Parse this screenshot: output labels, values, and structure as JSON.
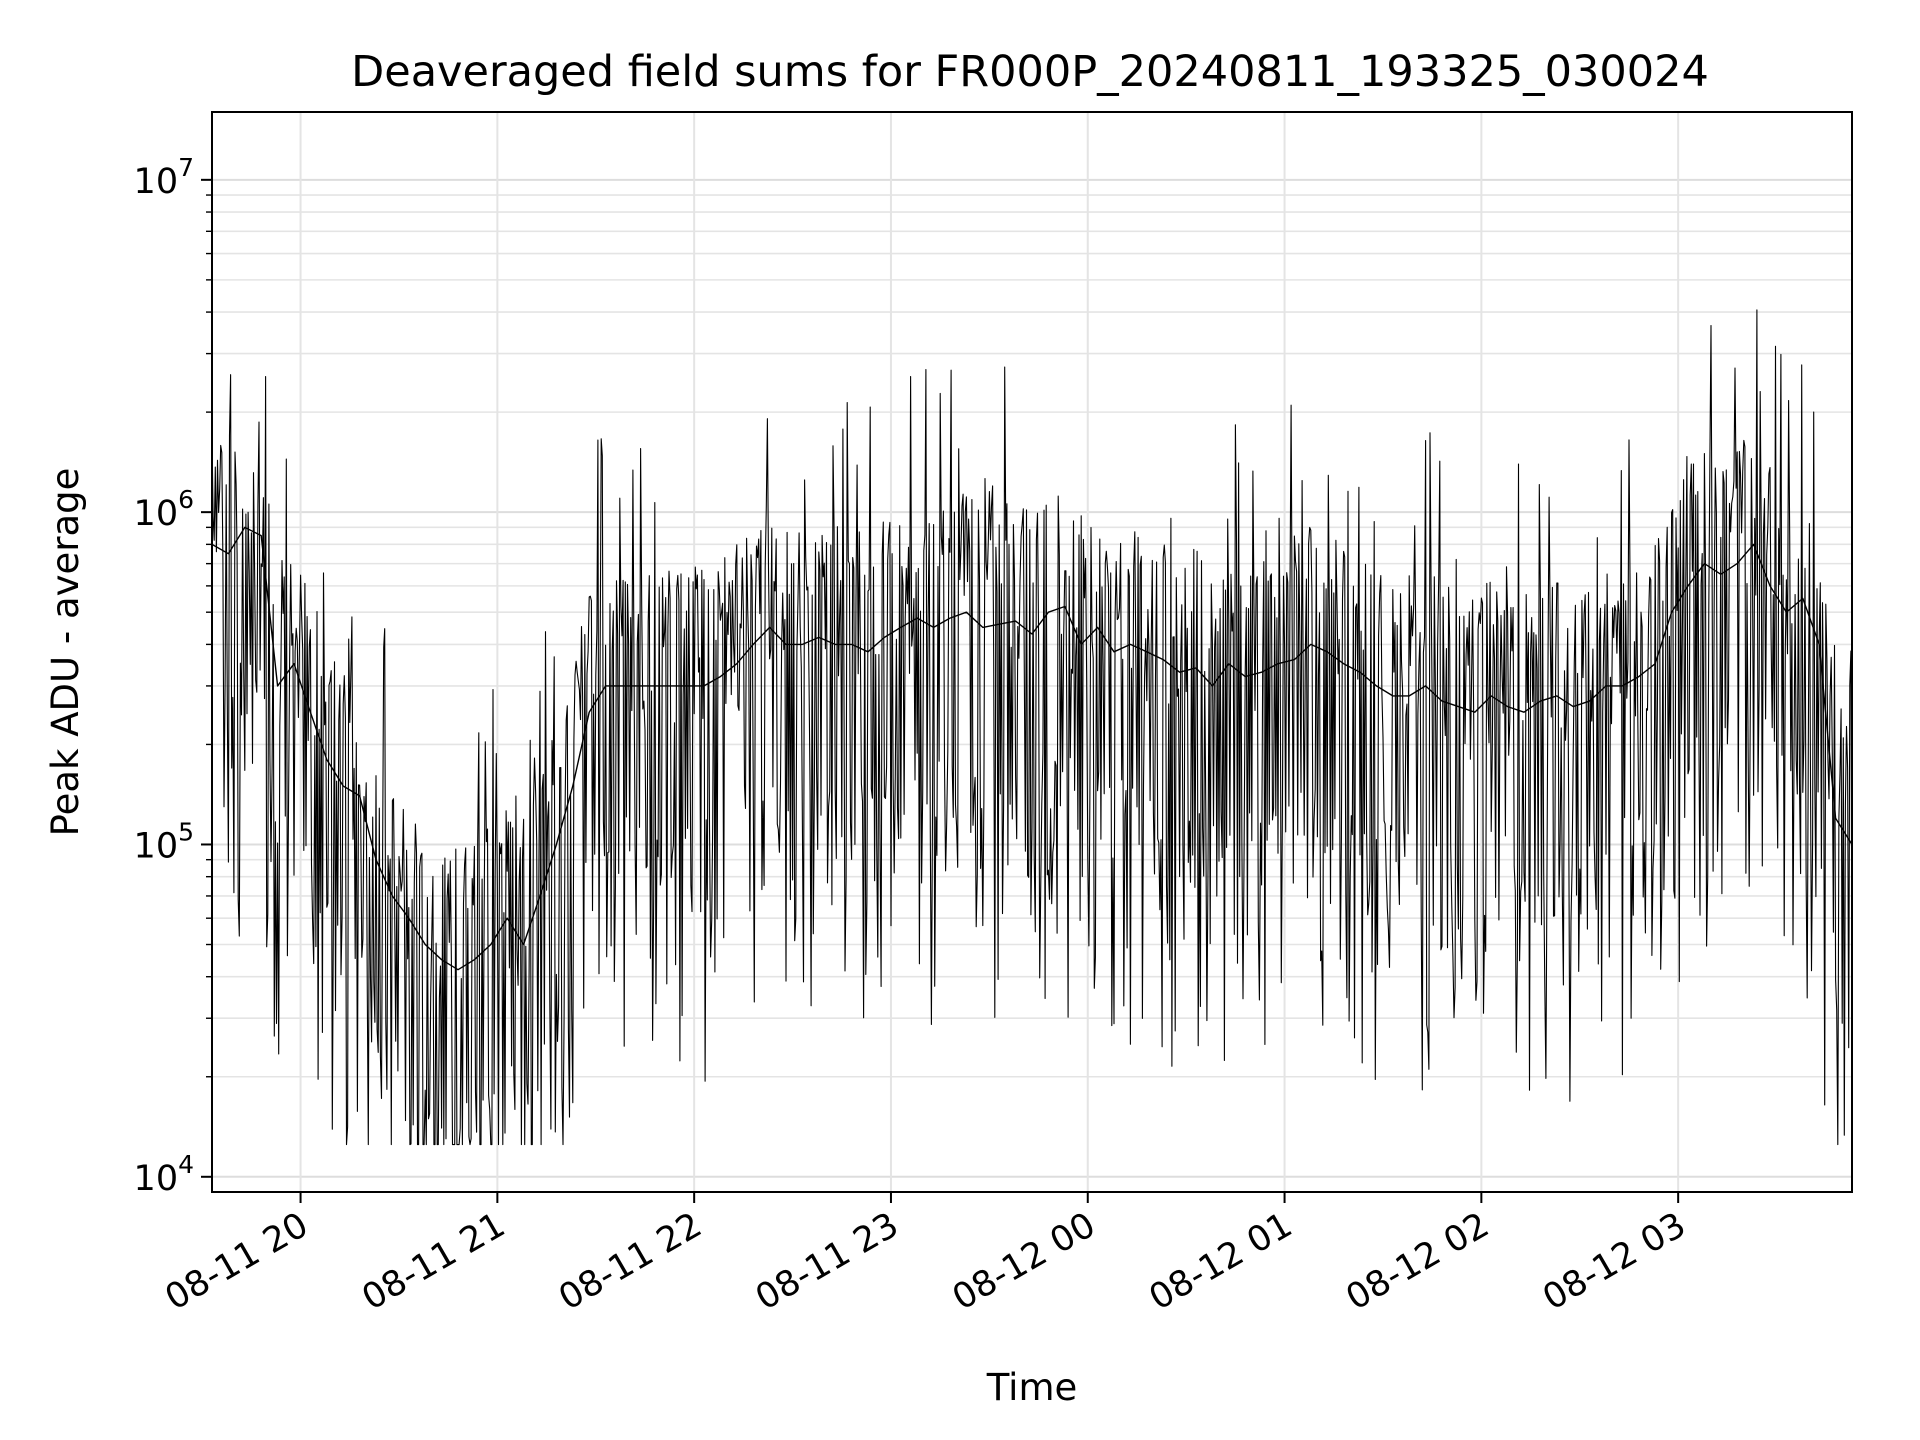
{
  "chart_data": {
    "type": "line",
    "title": "Deaveraged field sums for FR000P_20240811_193325_030024",
    "xlabel": "Time",
    "ylabel": "Peak ADU - average",
    "yscale": "log",
    "ylim": [
      9000,
      16000000
    ],
    "xlim": [
      "2024-08-11 19:33",
      "2024-08-12 03:53"
    ],
    "grid": true,
    "legend": "none",
    "line_color": "#000000",
    "x_ticks": [
      {
        "value": "2024-08-11 20:00",
        "label": "08-11 20"
      },
      {
        "value": "2024-08-11 21:00",
        "label": "08-11 21"
      },
      {
        "value": "2024-08-11 22:00",
        "label": "08-11 22"
      },
      {
        "value": "2024-08-11 23:00",
        "label": "08-11 23"
      },
      {
        "value": "2024-08-12 00:00",
        "label": "08-12 00"
      },
      {
        "value": "2024-08-12 01:00",
        "label": "08-12 01"
      },
      {
        "value": "2024-08-12 02:00",
        "label": "08-12 02"
      },
      {
        "value": "2024-08-12 03:00",
        "label": "08-12 03"
      }
    ],
    "y_ticks": [
      {
        "value": 10000,
        "base": "10",
        "exp": "4"
      },
      {
        "value": 100000,
        "base": "10",
        "exp": "5"
      },
      {
        "value": 1000000,
        "base": "10",
        "exp": "6"
      },
      {
        "value": 10000000,
        "base": "10",
        "exp": "7"
      }
    ],
    "series": [
      {
        "x": [
          "2024-08-11 19:33",
          "2024-08-11 19:38",
          "2024-08-11 19:43",
          "2024-08-11 19:48",
          "2024-08-11 19:53",
          "2024-08-11 19:58",
          "2024-08-11 20:03",
          "2024-08-11 20:08",
          "2024-08-11 20:13",
          "2024-08-11 20:18",
          "2024-08-11 20:23",
          "2024-08-11 20:28",
          "2024-08-11 20:33",
          "2024-08-11 20:38",
          "2024-08-11 20:43",
          "2024-08-11 20:48",
          "2024-08-11 20:53",
          "2024-08-11 20:58",
          "2024-08-11 21:03",
          "2024-08-11 21:08",
          "2024-08-11 21:13",
          "2024-08-11 21:18",
          "2024-08-11 21:23",
          "2024-08-11 21:28",
          "2024-08-11 21:33",
          "2024-08-11 21:38",
          "2024-08-11 21:43",
          "2024-08-11 21:48",
          "2024-08-11 21:53",
          "2024-08-11 21:58",
          "2024-08-11 22:03",
          "2024-08-11 22:08",
          "2024-08-11 22:13",
          "2024-08-11 22:18",
          "2024-08-11 22:23",
          "2024-08-11 22:28",
          "2024-08-11 22:33",
          "2024-08-11 22:38",
          "2024-08-11 22:43",
          "2024-08-11 22:48",
          "2024-08-11 22:53",
          "2024-08-11 22:58",
          "2024-08-11 23:03",
          "2024-08-11 23:08",
          "2024-08-11 23:13",
          "2024-08-11 23:18",
          "2024-08-11 23:23",
          "2024-08-11 23:28",
          "2024-08-11 23:33",
          "2024-08-11 23:38",
          "2024-08-11 23:43",
          "2024-08-11 23:48",
          "2024-08-11 23:53",
          "2024-08-11 23:58",
          "2024-08-12 00:03",
          "2024-08-12 00:08",
          "2024-08-12 00:13",
          "2024-08-12 00:18",
          "2024-08-12 00:23",
          "2024-08-12 00:28",
          "2024-08-12 00:33",
          "2024-08-12 00:38",
          "2024-08-12 00:43",
          "2024-08-12 00:48",
          "2024-08-12 00:53",
          "2024-08-12 00:58",
          "2024-08-12 01:03",
          "2024-08-12 01:08",
          "2024-08-12 01:13",
          "2024-08-12 01:18",
          "2024-08-12 01:23",
          "2024-08-12 01:28",
          "2024-08-12 01:33",
          "2024-08-12 01:38",
          "2024-08-12 01:43",
          "2024-08-12 01:48",
          "2024-08-12 01:53",
          "2024-08-12 01:58",
          "2024-08-12 02:03",
          "2024-08-12 02:08",
          "2024-08-12 02:13",
          "2024-08-12 02:18",
          "2024-08-12 02:23",
          "2024-08-12 02:28",
          "2024-08-12 02:33",
          "2024-08-12 02:38",
          "2024-08-12 02:43",
          "2024-08-12 02:48",
          "2024-08-12 02:53",
          "2024-08-12 02:58",
          "2024-08-12 03:03",
          "2024-08-12 03:08",
          "2024-08-12 03:13",
          "2024-08-12 03:18",
          "2024-08-12 03:23",
          "2024-08-12 03:28",
          "2024-08-12 03:33",
          "2024-08-12 03:38",
          "2024-08-12 03:43",
          "2024-08-12 03:48",
          "2024-08-12 03:53"
        ],
        "y": [
          800000,
          750000,
          900000,
          850000,
          300000,
          350000,
          250000,
          180000,
          150000,
          140000,
          90000,
          70000,
          60000,
          50000,
          45000,
          42000,
          45000,
          50000,
          60000,
          50000,
          70000,
          100000,
          150000,
          250000,
          300000,
          300000,
          300000,
          300000,
          300000,
          300000,
          300000,
          320000,
          350000,
          400000,
          450000,
          400000,
          400000,
          420000,
          400000,
          400000,
          380000,
          420000,
          450000,
          480000,
          450000,
          480000,
          500000,
          450000,
          460000,
          470000,
          430000,
          500000,
          520000,
          400000,
          450000,
          380000,
          400000,
          380000,
          360000,
          330000,
          340000,
          300000,
          350000,
          320000,
          330000,
          350000,
          360000,
          400000,
          380000,
          350000,
          330000,
          300000,
          280000,
          280000,
          300000,
          270000,
          260000,
          250000,
          280000,
          260000,
          250000,
          270000,
          280000,
          260000,
          270000,
          300000,
          300000,
          320000,
          350000,
          500000,
          600000,
          700000,
          650000,
          700000,
          800000,
          600000,
          500000,
          550000,
          400000,
          120000,
          100000
        ]
      }
    ]
  }
}
